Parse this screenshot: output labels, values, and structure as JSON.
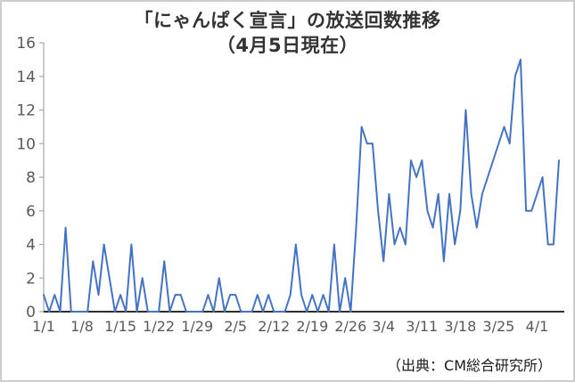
{
  "title": {
    "line1": "「にゃんぱく宣言」の放送回数推移",
    "line2": "（4月5日現在）"
  },
  "source": "（出典：CM総合研究所）",
  "chart_data": {
    "type": "line",
    "title": "「にゃんぱく宣言」の放送回数推移（4月5日現在）",
    "xlabel": "",
    "ylabel": "",
    "x_start": "1/1",
    "x_end": "4/5",
    "x_tick_labels": [
      "1/1",
      "1/8",
      "1/15",
      "1/22",
      "1/29",
      "2/5",
      "2/12",
      "2/19",
      "2/26",
      "3/4",
      "3/11",
      "3/18",
      "3/25",
      "4/1"
    ],
    "x_tick_day_indices": [
      0,
      7,
      14,
      21,
      28,
      35,
      42,
      49,
      56,
      62,
      69,
      76,
      83,
      90
    ],
    "y_ticks": [
      0,
      2,
      4,
      6,
      8,
      10,
      12,
      14,
      16
    ],
    "ylim": [
      0,
      16
    ],
    "grid": false,
    "legend": "none",
    "line_color": "#4472c4",
    "y_axis_color": "#a6a6a6",
    "x_axis_color": "#2e2e2e",
    "tick_label_color": "#595959",
    "values": [
      1,
      0,
      1,
      0,
      5,
      0,
      0,
      0,
      0,
      3,
      1,
      4,
      2,
      0,
      1,
      0,
      4,
      0,
      2,
      0,
      0,
      0,
      3,
      0,
      1,
      1,
      0,
      0,
      0,
      0,
      1,
      0,
      2,
      0,
      1,
      1,
      0,
      0,
      0,
      1,
      0,
      1,
      0,
      0,
      0,
      1,
      4,
      1,
      0,
      1,
      0,
      1,
      0,
      4,
      0,
      2,
      0,
      5,
      11,
      10,
      10,
      6,
      3,
      7,
      4,
      5,
      4,
      9,
      8,
      9,
      6,
      5,
      7,
      3,
      7,
      4,
      6,
      12,
      7,
      5,
      7,
      8,
      9,
      10,
      11,
      10,
      14,
      15,
      6,
      6,
      7,
      8,
      4,
      4,
      9
    ]
  }
}
